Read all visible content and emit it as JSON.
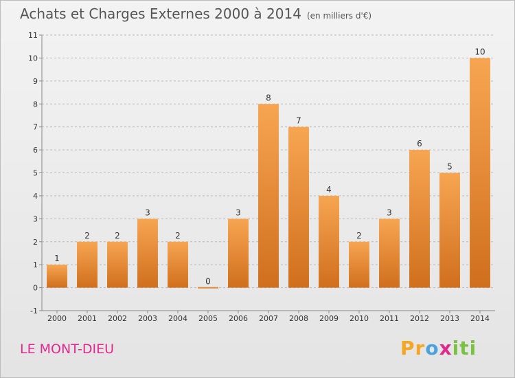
{
  "header": {
    "title": "Achats et Charges Externes 2000 à 2014",
    "unit": "(en milliers d'€)"
  },
  "footer": {
    "town": "LE MONT-DIEU",
    "brand": "Proxiti"
  },
  "colors": {
    "bar_top": "#f7a552",
    "bar_bottom": "#d06f1d",
    "grid": "#b8b8b8",
    "axis_text": "#333333",
    "title_text": "#555555",
    "town_text": "#e0298f"
  },
  "chart_data": {
    "type": "bar",
    "title": "Achats et Charges Externes 2000 à 2014",
    "xlabel": "",
    "ylabel": "",
    "categories": [
      "2000",
      "2001",
      "2002",
      "2003",
      "2004",
      "2005",
      "2006",
      "2007",
      "2008",
      "2009",
      "2010",
      "2011",
      "2012",
      "2013",
      "2014"
    ],
    "values": [
      1,
      2,
      2,
      3,
      2,
      0,
      3,
      8,
      7,
      4,
      2,
      3,
      6,
      5,
      10
    ],
    "ylim": [
      -1,
      11
    ],
    "yticks": [
      -1,
      0,
      1,
      2,
      3,
      4,
      5,
      6,
      7,
      8,
      9,
      10,
      11
    ],
    "grid": "horizontal dashed",
    "legend": "none"
  }
}
